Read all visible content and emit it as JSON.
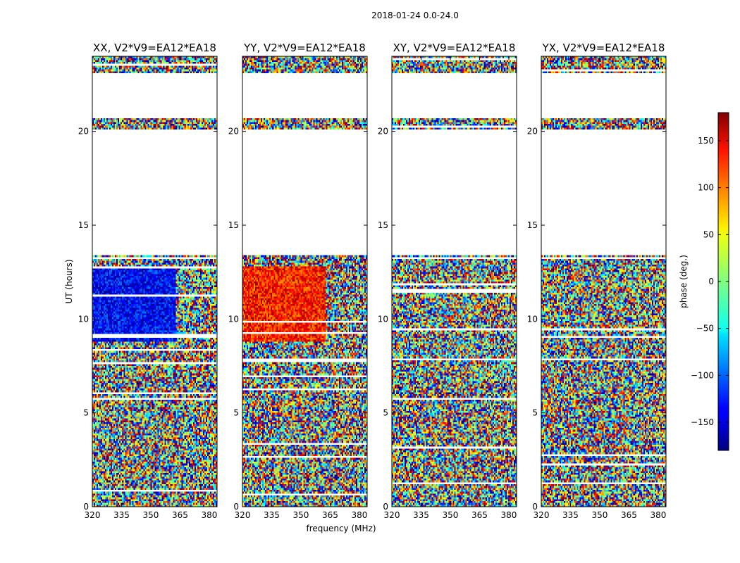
{
  "figure": {
    "suptitle": "2018-01-24 0.0-24.0",
    "xlabel": "frequency (MHz)",
    "ylabel": "UT (hours)"
  },
  "chart_data": {
    "type": "heatmap",
    "panels": [
      {
        "title": "XX, V2*V9=EA12*EA18",
        "id": "xx"
      },
      {
        "title": "YY, V2*V9=EA12*EA18",
        "id": "yy"
      },
      {
        "title": "XY, V2*V9=EA12*EA18",
        "id": "xy"
      },
      {
        "title": "YX, V2*V9=EA12*EA18",
        "id": "yx"
      }
    ],
    "xlim": [
      320,
      384
    ],
    "ylim": [
      0,
      24
    ],
    "x_ticks": [
      320,
      335,
      350,
      365,
      380
    ],
    "x_tick_labels": [
      "320",
      "335",
      "350",
      "365",
      "380"
    ],
    "y_ticks": [
      0,
      5,
      10,
      15,
      20
    ],
    "y_tick_labels": [
      "0",
      "5",
      "10",
      "15",
      "20"
    ],
    "flagged_ut_ranges_hours": [
      [
        13.4,
        20.1
      ],
      [
        20.75,
        23.1
      ]
    ],
    "colorbar": {
      "label": "phase (deg.)",
      "range": [
        -180,
        180
      ],
      "ticks": [
        -150,
        -100,
        -50,
        0,
        50,
        100,
        150
      ],
      "tick_labels": [
        "−150",
        "−100",
        "−50",
        "0",
        "50",
        "100",
        "150"
      ],
      "colormap": "jet"
    }
  },
  "colors": {
    "axis": "#000000",
    "background": "#ffffff"
  }
}
